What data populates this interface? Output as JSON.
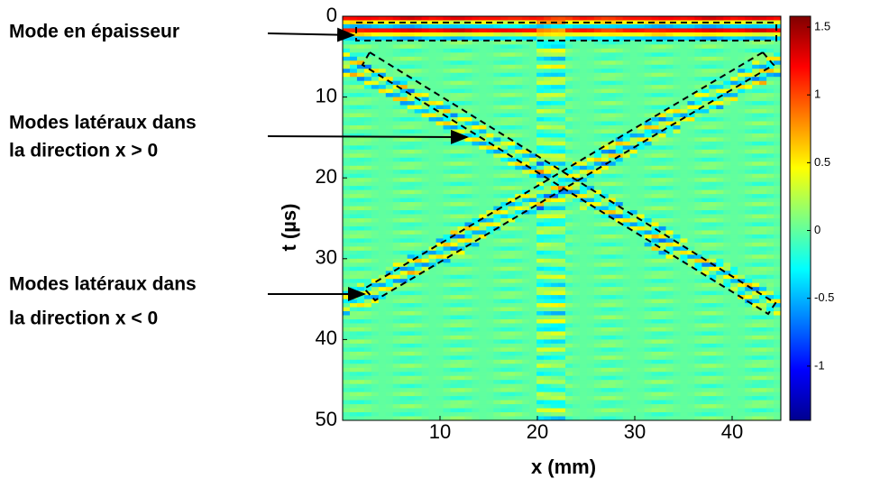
{
  "chart_data": {
    "type": "heatmap",
    "xlabel": "x (mm)",
    "ylabel": "t (µs)",
    "xlim": [
      0,
      45
    ],
    "ylim": [
      0,
      50
    ],
    "xticks": [
      10,
      20,
      30,
      40
    ],
    "yticks": [
      0,
      10,
      20,
      30,
      40,
      50
    ],
    "colormap": "jet",
    "clim": [
      -1.4,
      1.58
    ],
    "cticks": [
      -1,
      -0.5,
      0,
      0.5,
      1,
      1.5
    ],
    "annotations": [
      {
        "lines": [
          "Mode en épaisseur"
        ]
      },
      {
        "lines": [
          "Modes latéraux dans",
          "la direction x > 0"
        ]
      },
      {
        "lines": [
          "Modes latéraux dans",
          "la direction x < 0"
        ]
      }
    ]
  }
}
